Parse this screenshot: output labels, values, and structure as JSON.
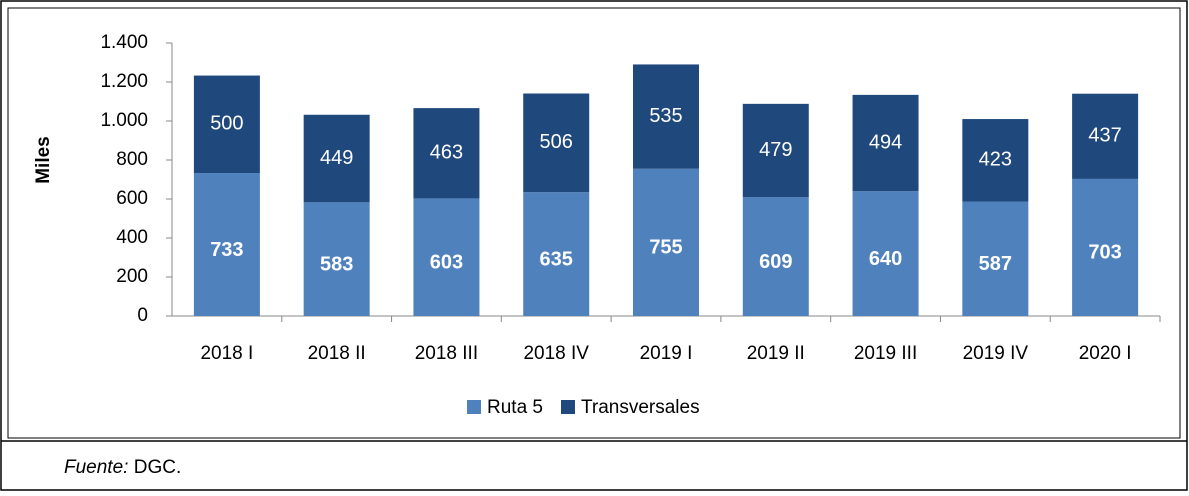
{
  "chart_data": {
    "type": "stacked_bar",
    "y_label": "Miles",
    "categories": [
      "2018 I",
      "2018 II",
      "2018 III",
      "2018 IV",
      "2019 I",
      "2019 II",
      "2019 III",
      "2019 IV",
      "2020 I"
    ],
    "series": [
      {
        "name": "Ruta 5",
        "color": "#4f81bd",
        "values": [
          733,
          583,
          603,
          635,
          755,
          609,
          640,
          587,
          703
        ]
      },
      {
        "name": "Transversales",
        "color": "#1f497d",
        "values": [
          500,
          449,
          463,
          506,
          535,
          479,
          494,
          423,
          437
        ]
      }
    ],
    "ylim": [
      0,
      1400
    ],
    "yticks": [
      0,
      200,
      400,
      600,
      800,
      {
        "value": 1000,
        "label": "1.000"
      },
      {
        "value": 1200,
        "label": "1.200"
      },
      {
        "value": 1400,
        "label": "1.400"
      }
    ],
    "legend": "bottom"
  },
  "footer": {
    "label": "Fuente:",
    "text": "DGC."
  }
}
